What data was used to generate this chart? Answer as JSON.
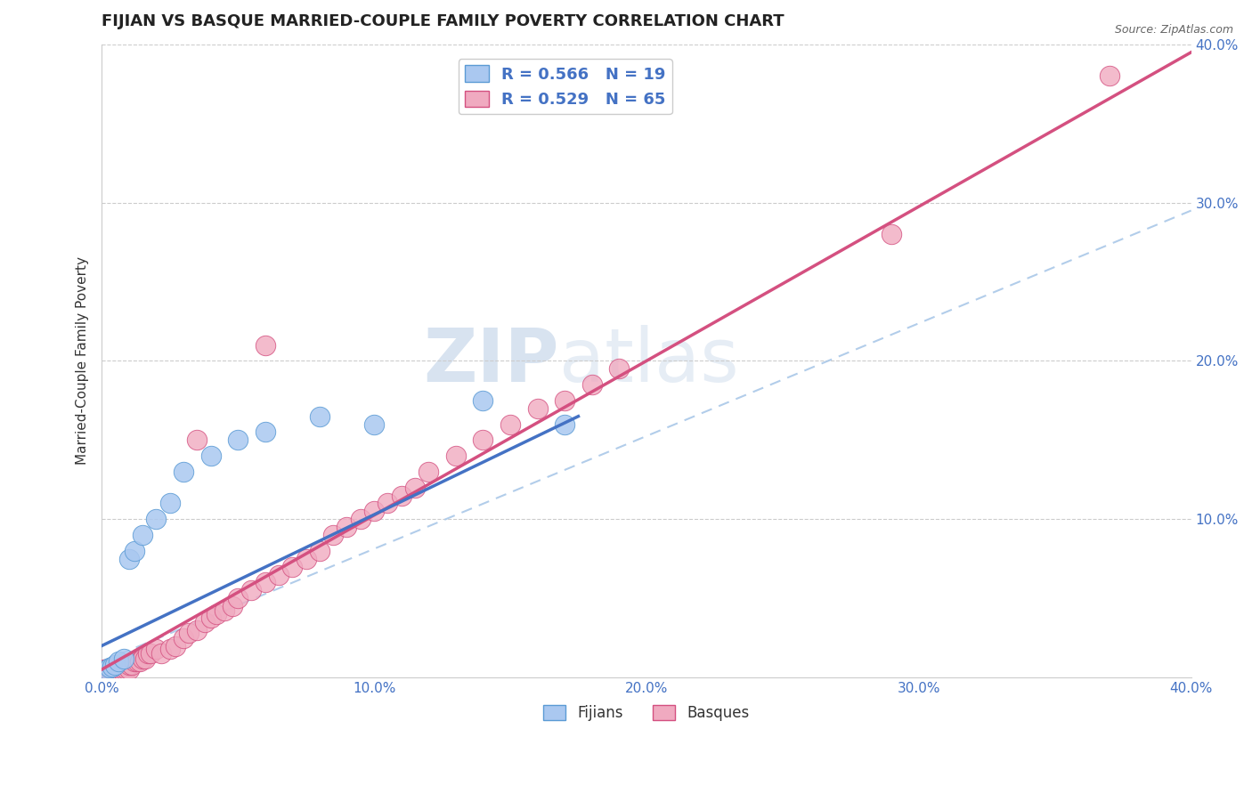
{
  "title": "FIJIAN VS BASQUE MARRIED-COUPLE FAMILY POVERTY CORRELATION CHART",
  "source_text": "Source: ZipAtlas.com",
  "ylabel": "Married-Couple Family Poverty",
  "xlim": [
    0.0,
    0.4
  ],
  "ylim": [
    0.0,
    0.4
  ],
  "xtick_vals": [
    0.0,
    0.05,
    0.1,
    0.15,
    0.2,
    0.25,
    0.3,
    0.35,
    0.4
  ],
  "ytick_vals": [
    0.1,
    0.2,
    0.3,
    0.4
  ],
  "ytick_labels": [
    "10.0%",
    "20.0%",
    "30.0%",
    "40.0%"
  ],
  "xtick_labels": [
    "0.0%",
    "",
    "10.0%",
    "",
    "20.0%",
    "",
    "30.0%",
    "",
    "40.0%"
  ],
  "fijian_color": "#aac8f0",
  "basque_color": "#f0aac0",
  "fijian_edge_color": "#5b9bd5",
  "basque_edge_color": "#d45080",
  "fijian_line_color": "#4472c4",
  "basque_line_color": "#d45080",
  "dash_line_color": "#aac8e8",
  "fijian_R": 0.566,
  "fijian_N": 19,
  "basque_R": 0.529,
  "basque_N": 65,
  "watermark": "ZIPatlas",
  "watermark_color": "#c8d8ea",
  "legend_text_color": "#4472c4",
  "title_fontsize": 13,
  "fijian_x": [
    0.002,
    0.003,
    0.004,
    0.005,
    0.006,
    0.008,
    0.01,
    0.012,
    0.015,
    0.02,
    0.025,
    0.03,
    0.04,
    0.05,
    0.06,
    0.08,
    0.1,
    0.14,
    0.17
  ],
  "fijian_y": [
    0.005,
    0.006,
    0.007,
    0.008,
    0.01,
    0.012,
    0.075,
    0.08,
    0.09,
    0.1,
    0.11,
    0.13,
    0.14,
    0.15,
    0.155,
    0.165,
    0.16,
    0.175,
    0.16
  ],
  "basque_x": [
    0.001,
    0.001,
    0.002,
    0.002,
    0.003,
    0.003,
    0.004,
    0.004,
    0.005,
    0.005,
    0.005,
    0.006,
    0.006,
    0.007,
    0.007,
    0.008,
    0.009,
    0.01,
    0.01,
    0.011,
    0.012,
    0.013,
    0.014,
    0.015,
    0.016,
    0.017,
    0.018,
    0.02,
    0.022,
    0.025,
    0.027,
    0.03,
    0.032,
    0.035,
    0.038,
    0.04,
    0.042,
    0.045,
    0.048,
    0.05,
    0.055,
    0.06,
    0.065,
    0.07,
    0.075,
    0.08,
    0.085,
    0.09,
    0.095,
    0.1,
    0.105,
    0.11,
    0.115,
    0.12,
    0.13,
    0.14,
    0.15,
    0.16,
    0.17,
    0.18,
    0.19,
    0.035,
    0.06,
    0.29,
    0.37
  ],
  "basque_y": [
    0.005,
    0.005,
    0.005,
    0.005,
    0.005,
    0.005,
    0.005,
    0.005,
    0.005,
    0.005,
    0.005,
    0.005,
    0.005,
    0.005,
    0.005,
    0.005,
    0.005,
    0.005,
    0.008,
    0.008,
    0.01,
    0.01,
    0.01,
    0.012,
    0.012,
    0.015,
    0.015,
    0.018,
    0.015,
    0.018,
    0.02,
    0.025,
    0.028,
    0.03,
    0.035,
    0.038,
    0.04,
    0.042,
    0.045,
    0.05,
    0.055,
    0.06,
    0.065,
    0.07,
    0.075,
    0.08,
    0.09,
    0.095,
    0.1,
    0.105,
    0.11,
    0.115,
    0.12,
    0.13,
    0.14,
    0.15,
    0.16,
    0.17,
    0.175,
    0.185,
    0.195,
    0.15,
    0.21,
    0.28,
    0.38
  ],
  "fijian_line_x0": 0.0,
  "fijian_line_y0": 0.02,
  "fijian_line_x1": 0.175,
  "fijian_line_y1": 0.165,
  "basque_line_x0": 0.0,
  "basque_line_y0": 0.005,
  "basque_line_x1": 0.4,
  "basque_line_y1": 0.395,
  "dash_line_x0": 0.0,
  "dash_line_y0": 0.01,
  "dash_line_x1": 0.4,
  "dash_line_y1": 0.295
}
